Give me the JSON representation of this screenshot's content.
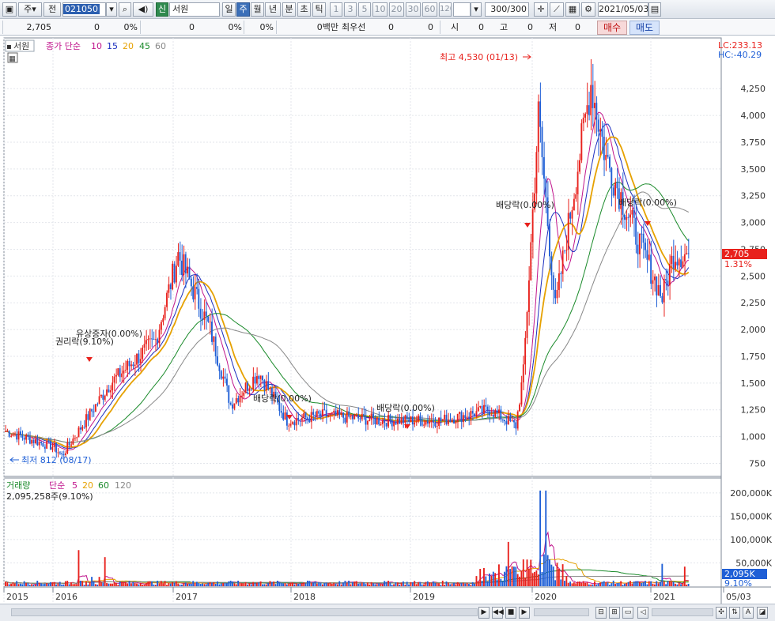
{
  "toolbar": {
    "opt_ju": "주",
    "opt_jeon": "전",
    "code": "021050",
    "name_badge": "신",
    "name": "서원",
    "periods": [
      "일",
      "주",
      "월",
      "년",
      "분",
      "초",
      "틱"
    ],
    "selected_period": "주",
    "counts": [
      "1",
      "3",
      "5",
      "10",
      "20",
      "30",
      "60",
      "120"
    ],
    "range": "300/300",
    "date": "2021/05/03"
  },
  "inforow": {
    "price": "2,705",
    "change": "0",
    "change_pct": "0%",
    "v2": "0",
    "v2_pct": "0%",
    "v3": "0",
    "v3_pct": "0%",
    "amount": "0백만",
    "priority": "최우선",
    "p1": "0",
    "p2": "0",
    "open_label": "시",
    "open": "0",
    "high_label": "고",
    "high": "0",
    "low_label": "저",
    "low": "0",
    "buy": "매수",
    "sell": "매도"
  },
  "price_panel": {
    "title": "서원",
    "ma_label": "종가 단순",
    "ma_periods": [
      "10",
      "15",
      "20",
      "45",
      "60"
    ],
    "lc": "LC:233.13",
    "hc": "HC:-40.29",
    "last_price": "2,705",
    "last_pct": "1.31%",
    "high_note": "최고 4,530 (01/13)",
    "low_note": "최저 812 (08/17)",
    "events": [
      "유상증자(0.00%)",
      "권리락(9.10%)",
      "배당락(0.00%)",
      "배당락(0.00%)",
      "배당락(0.00%)",
      "배당락(0.00%)"
    ]
  },
  "volume_panel": {
    "label": "거래량",
    "ma_label": "단순",
    "ma_periods": [
      "5",
      "20",
      "60",
      "120"
    ],
    "current": "2,095,258주(9.10%)",
    "tag": "2,095K",
    "tag_pct": "9.10%"
  },
  "x_axis_labels": [
    "2015",
    "2016",
    "2017",
    "2018",
    "2019",
    "2020",
    "2021",
    "05/03"
  ],
  "colors": {
    "up": "#e8211c",
    "down": "#1f5fd6",
    "ma10": "#c0148c",
    "ma15": "#1c2fbf",
    "ma20": "#e6a100",
    "ma45": "#1a8a2a",
    "ma60": "#888888",
    "accent": "#3b6fb8"
  },
  "chart_data": {
    "type": "candlestick",
    "title": "서원",
    "x": [
      "2015-01",
      "2015-07",
      "2015-08",
      "2016-01",
      "2016-06",
      "2016-09",
      "2017-01",
      "2017-04",
      "2017-07",
      "2017-10",
      "2018-01",
      "2018-06",
      "2019-01",
      "2019-06",
      "2019-10",
      "2019-12",
      "2020-01",
      "2020-03",
      "2020-07",
      "2020-09",
      "2020-12",
      "2021-02",
      "2021-03",
      "2021-05"
    ],
    "close": [
      1050,
      900,
      820,
      1500,
      1900,
      2700,
      2000,
      1300,
      1600,
      1150,
      1200,
      1150,
      1150,
      1250,
      1100,
      1600,
      4000,
      2200,
      4300,
      3600,
      2800,
      2300,
      2700,
      2705
    ],
    "y_ticks": [
      750,
      1000,
      1250,
      1500,
      1750,
      2000,
      2250,
      2500,
      2750,
      3000,
      3250,
      3500,
      3750,
      4000,
      4250
    ],
    "y_tick_labels": [
      "750",
      "1,000",
      "1,250",
      "1,500",
      "1,750",
      "2,000",
      "2,250",
      "2,500",
      "2,750",
      "3,000",
      "3,250",
      "3,500",
      "3,750",
      "4,000",
      "4,250"
    ],
    "ylim": [
      650,
      4650
    ],
    "series": [
      {
        "name": "10"
      },
      {
        "name": "15"
      },
      {
        "name": "20"
      },
      {
        "name": "45"
      },
      {
        "name": "60"
      }
    ],
    "volume_y_ticks": [
      50000,
      100000,
      150000,
      200000
    ],
    "volume_y_tick_labels": [
      "50,000K",
      "100,000K",
      "150,000K",
      "200,000K"
    ],
    "volume_ylim": [
      0,
      215000
    ]
  }
}
